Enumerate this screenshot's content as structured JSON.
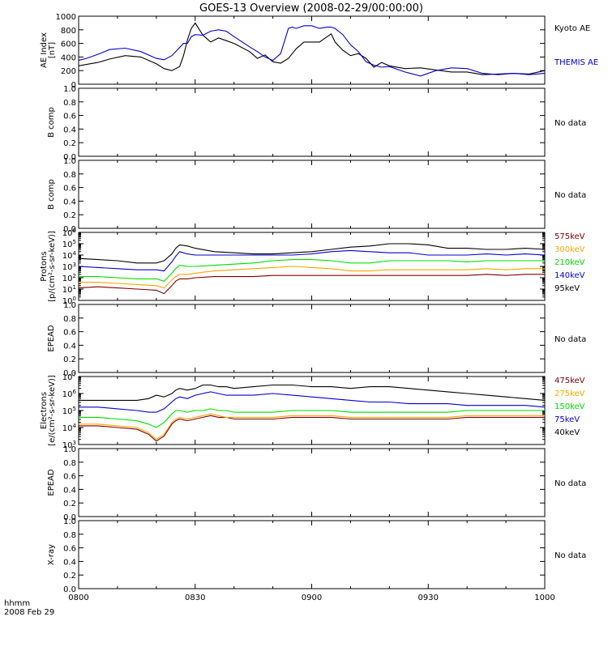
{
  "title": "GOES-13 Overview (2008-02-29/00:00:00)",
  "footer": {
    "line1": "hhmm",
    "line2": "2008 Feb 29"
  },
  "x_ticks": [
    "0800",
    "0830",
    "0900",
    "0930",
    "1000"
  ],
  "chart_data": [
    {
      "type": "line",
      "ylabel": [
        "AE Index",
        "[nT]"
      ],
      "ylim": [
        0,
        1000
      ],
      "yticks": [
        "0",
        "200",
        "400",
        "600",
        "800",
        "1000"
      ],
      "x": [
        0,
        2,
        5,
        8,
        12,
        16,
        20,
        22,
        24,
        26,
        27,
        28,
        29,
        30,
        32,
        34,
        36,
        38,
        40,
        44,
        46,
        48,
        50,
        52,
        54,
        55,
        56,
        58,
        60,
        62,
        64,
        65,
        66,
        68,
        70,
        72,
        74,
        76,
        78,
        80,
        84,
        88,
        92,
        96,
        100,
        104,
        108,
        112,
        116,
        120
      ],
      "series": [
        {
          "name": "Kyoto AE",
          "color": "#000000",
          "values": [
            270,
            290,
            320,
            370,
            420,
            400,
            300,
            230,
            200,
            260,
            420,
            650,
            820,
            900,
            720,
            620,
            680,
            640,
            600,
            480,
            380,
            430,
            330,
            310,
            380,
            450,
            520,
            620,
            620,
            620,
            700,
            740,
            620,
            500,
            420,
            450,
            380,
            250,
            320,
            270,
            230,
            240,
            210,
            180,
            180,
            140,
            150,
            160,
            150,
            200
          ]
        },
        {
          "name": "THEMIS AE",
          "color": "#0000cc",
          "values": [
            350,
            380,
            440,
            510,
            530,
            480,
            380,
            360,
            420,
            540,
            600,
            600,
            700,
            730,
            720,
            780,
            800,
            780,
            700,
            550,
            480,
            400,
            350,
            450,
            820,
            840,
            820,
            860,
            860,
            820,
            840,
            840,
            820,
            730,
            580,
            480,
            330,
            280,
            250,
            260,
            180,
            120,
            200,
            240,
            230,
            160,
            140,
            160,
            140,
            160
          ]
        }
      ]
    },
    {
      "type": "line",
      "ylabel": [
        "B comp"
      ],
      "ylim": [
        0,
        1
      ],
      "yticks": [
        "0.0",
        "0.2",
        "0.4",
        "0.6",
        "0.8",
        "1.0"
      ],
      "series": [],
      "annotation": "No data"
    },
    {
      "type": "line",
      "ylabel": [
        "B comp"
      ],
      "ylim": [
        0,
        1
      ],
      "yticks": [
        "0.0",
        "0.2",
        "0.4",
        "0.6",
        "0.8",
        "1.0"
      ],
      "series": [],
      "annotation": "No data"
    },
    {
      "type": "line",
      "log": true,
      "ylabel": [
        "Protons",
        "[p/(cm²-s-sr-keV)]"
      ],
      "ylim": [
        0,
        6
      ],
      "yticks": [
        {
          "base": "10",
          "exp": "0"
        },
        {
          "base": "10",
          "exp": "1"
        },
        {
          "base": "10",
          "exp": "2"
        },
        {
          "base": "10",
          "exp": "3"
        },
        {
          "base": "10",
          "exp": "4"
        },
        {
          "base": "10",
          "exp": "5"
        },
        {
          "base": "10",
          "exp": "6"
        }
      ],
      "x": [
        0,
        5,
        10,
        15,
        20,
        22,
        24,
        25,
        26,
        28,
        30,
        35,
        40,
        45,
        50,
        55,
        60,
        65,
        70,
        75,
        80,
        85,
        90,
        95,
        100,
        105,
        110,
        115,
        120
      ],
      "series": [
        {
          "name": "575keV",
          "color": "#800000",
          "values": [
            1.1,
            1.2,
            1.1,
            1.0,
            0.9,
            0.6,
            1.3,
            1.7,
            1.9,
            1.9,
            2.0,
            2.1,
            2.1,
            2.1,
            2.2,
            2.2,
            2.2,
            2.2,
            2.2,
            2.2,
            2.2,
            2.2,
            2.2,
            2.2,
            2.2,
            2.3,
            2.2,
            2.3,
            2.3
          ]
        },
        {
          "name": "300keV",
          "color": "#ffa500",
          "values": [
            1.6,
            1.6,
            1.5,
            1.4,
            1.3,
            1.1,
            1.8,
            2.1,
            2.3,
            2.3,
            2.4,
            2.6,
            2.7,
            2.8,
            2.9,
            3.0,
            2.9,
            2.8,
            2.6,
            2.6,
            2.7,
            2.7,
            2.7,
            2.7,
            2.7,
            2.8,
            2.7,
            2.8,
            2.8
          ]
        },
        {
          "name": "210keV",
          "color": "#00dd00",
          "values": [
            2.1,
            2.1,
            2.0,
            1.9,
            1.9,
            1.7,
            2.4,
            2.8,
            3.1,
            3.0,
            3.0,
            3.1,
            3.2,
            3.3,
            3.5,
            3.6,
            3.6,
            3.5,
            3.3,
            3.3,
            3.5,
            3.5,
            3.5,
            3.5,
            3.4,
            3.5,
            3.5,
            3.5,
            3.5
          ]
        },
        {
          "name": "140keV",
          "color": "#0000cc",
          "values": [
            3.0,
            2.9,
            2.8,
            2.7,
            2.7,
            2.6,
            3.4,
            3.9,
            4.3,
            4.1,
            4.0,
            4.0,
            4.0,
            4.0,
            4.0,
            4.0,
            4.1,
            4.3,
            4.4,
            4.3,
            4.2,
            4.2,
            4.0,
            4.0,
            4.0,
            4.1,
            4.0,
            4.1,
            4.0
          ]
        },
        {
          "name": "95keV",
          "color": "#000000",
          "values": [
            3.7,
            3.6,
            3.5,
            3.3,
            3.3,
            3.5,
            4.1,
            4.6,
            4.9,
            4.8,
            4.6,
            4.3,
            4.2,
            4.1,
            4.1,
            4.2,
            4.3,
            4.5,
            4.7,
            4.8,
            5.0,
            5.0,
            4.9,
            4.6,
            4.6,
            4.5,
            4.5,
            4.6,
            4.5
          ]
        }
      ]
    },
    {
      "type": "line",
      "ylabel": [
        "EPEAD"
      ],
      "ylim": [
        0,
        1
      ],
      "yticks": [
        "0.0",
        "0.2",
        "0.4",
        "0.6",
        "0.8",
        "1.0"
      ],
      "series": [],
      "annotation": "No data"
    },
    {
      "type": "line",
      "log": true,
      "ylabel": [
        "Electrons",
        "[e/(cm²-s-sr-keV)]"
      ],
      "ylim": [
        3,
        7
      ],
      "yticks": [
        {
          "base": "10",
          "exp": "3"
        },
        {
          "base": "10",
          "exp": "4"
        },
        {
          "base": "10",
          "exp": "5"
        },
        {
          "base": "10",
          "exp": "6"
        },
        {
          "base": "10",
          "exp": "7"
        }
      ],
      "x": [
        0,
        5,
        10,
        15,
        18,
        20,
        22,
        24,
        25,
        26,
        28,
        30,
        32,
        34,
        36,
        38,
        40,
        45,
        50,
        55,
        60,
        65,
        70,
        75,
        80,
        85,
        90,
        95,
        100,
        105,
        110,
        115,
        120
      ],
      "series": [
        {
          "name": "475keV",
          "color": "#800000",
          "values": [
            4.1,
            4.1,
            4.0,
            3.9,
            3.6,
            3.2,
            3.5,
            4.2,
            4.4,
            4.5,
            4.4,
            4.5,
            4.6,
            4.7,
            4.6,
            4.6,
            4.5,
            4.5,
            4.5,
            4.6,
            4.6,
            4.6,
            4.5,
            4.5,
            4.5,
            4.5,
            4.5,
            4.5,
            4.6,
            4.6,
            4.6,
            4.6,
            4.6
          ]
        },
        {
          "name": "275keV",
          "color": "#ffa500",
          "values": [
            4.2,
            4.2,
            4.1,
            4.0,
            3.7,
            3.3,
            3.6,
            4.3,
            4.5,
            4.6,
            4.5,
            4.6,
            4.7,
            4.8,
            4.7,
            4.6,
            4.6,
            4.6,
            4.6,
            4.7,
            4.7,
            4.7,
            4.6,
            4.6,
            4.6,
            4.6,
            4.6,
            4.6,
            4.7,
            4.7,
            4.7,
            4.7,
            4.7
          ]
        },
        {
          "name": "150keV",
          "color": "#00dd00",
          "values": [
            4.6,
            4.6,
            4.5,
            4.4,
            4.2,
            4.0,
            4.3,
            4.8,
            5.0,
            5.0,
            4.9,
            5.0,
            5.0,
            5.1,
            5.0,
            5.0,
            4.9,
            4.9,
            4.9,
            5.0,
            5.0,
            5.0,
            4.9,
            4.9,
            4.9,
            4.9,
            4.9,
            4.9,
            5.0,
            5.0,
            5.0,
            5.0,
            5.0
          ]
        },
        {
          "name": "75keV",
          "color": "#0000cc",
          "values": [
            5.2,
            5.2,
            5.1,
            5.0,
            4.9,
            4.9,
            5.1,
            5.5,
            5.7,
            5.8,
            5.7,
            5.9,
            6.0,
            6.1,
            6.0,
            5.9,
            5.9,
            5.9,
            6.0,
            5.9,
            5.8,
            5.7,
            5.6,
            5.5,
            5.5,
            5.4,
            5.4,
            5.4,
            5.3,
            5.3,
            5.3,
            5.3,
            5.2
          ]
        },
        {
          "name": "40keV",
          "color": "#000000",
          "values": [
            5.6,
            5.6,
            5.6,
            5.6,
            5.7,
            5.9,
            5.8,
            6.0,
            6.2,
            6.3,
            6.2,
            6.3,
            6.5,
            6.5,
            6.4,
            6.4,
            6.3,
            6.4,
            6.5,
            6.5,
            6.4,
            6.4,
            6.3,
            6.4,
            6.4,
            6.3,
            6.2,
            6.1,
            6.0,
            5.9,
            5.8,
            5.7,
            5.6
          ]
        }
      ]
    },
    {
      "type": "line",
      "ylabel": [
        "EPEAD"
      ],
      "ylim": [
        0,
        1
      ],
      "yticks": [
        "0.0",
        "0.2",
        "0.4",
        "0.6",
        "0.8",
        "1.0"
      ],
      "series": [],
      "annotation": "No data"
    },
    {
      "type": "line",
      "ylabel": [
        "X-ray"
      ],
      "ylim": [
        0,
        1
      ],
      "yticks": [
        "0.0",
        "0.2",
        "0.4",
        "0.6",
        "0.8",
        "1.0"
      ],
      "series": [],
      "annotation": "No data"
    }
  ]
}
